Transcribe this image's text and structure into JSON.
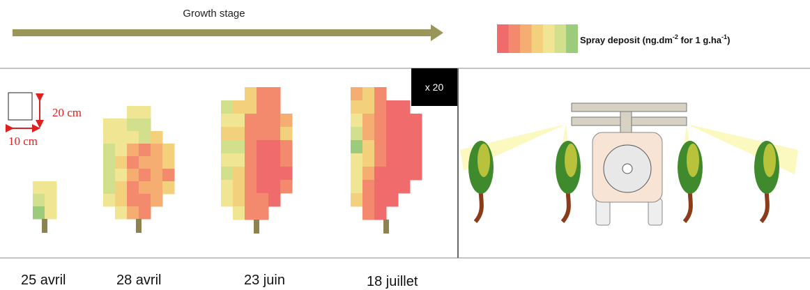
{
  "header": {
    "title": "Growth stage"
  },
  "legend": {
    "text": "Spray deposit (ng.dm",
    "sup1": "-2",
    "mid": " for 1 g.ha",
    "sup2": "-1",
    "end": ")"
  },
  "scale": {
    "height": "20 cm",
    "width": "10 cm",
    "zoom": "x 20"
  },
  "stages": [
    "25 avril",
    "28 avril",
    "23 juin",
    "18 juillet"
  ]
}
